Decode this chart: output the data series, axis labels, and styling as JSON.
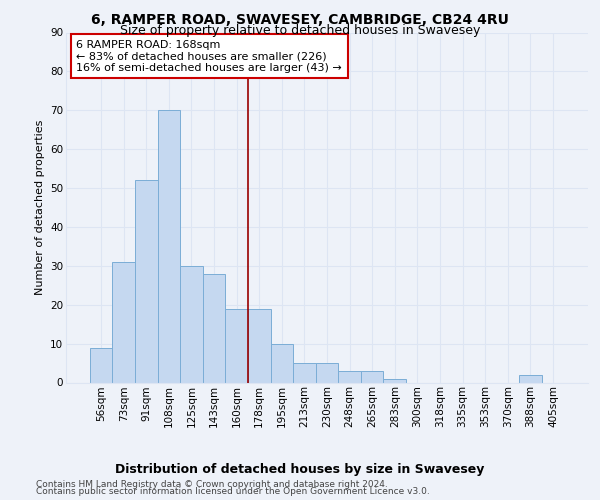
{
  "title1": "6, RAMPER ROAD, SWAVESEY, CAMBRIDGE, CB24 4RU",
  "title2": "Size of property relative to detached houses in Swavesey",
  "xlabel": "Distribution of detached houses by size in Swavesey",
  "ylabel": "Number of detached properties",
  "categories": [
    "56sqm",
    "73sqm",
    "91sqm",
    "108sqm",
    "125sqm",
    "143sqm",
    "160sqm",
    "178sqm",
    "195sqm",
    "213sqm",
    "230sqm",
    "248sqm",
    "265sqm",
    "283sqm",
    "300sqm",
    "318sqm",
    "335sqm",
    "353sqm",
    "370sqm",
    "388sqm",
    "405sqm"
  ],
  "values": [
    9,
    31,
    52,
    70,
    30,
    28,
    19,
    19,
    10,
    5,
    5,
    3,
    3,
    1,
    0,
    0,
    0,
    0,
    0,
    2,
    0
  ],
  "bar_color": "#c5d8f0",
  "bar_edge_color": "#7badd6",
  "vline_color": "#990000",
  "annotation_line1": "6 RAMPER ROAD: 168sqm",
  "annotation_line2": "← 83% of detached houses are smaller (226)",
  "annotation_line3": "16% of semi-detached houses are larger (43) →",
  "annotation_box_color": "#ffffff",
  "annotation_box_edge_color": "#cc0000",
  "ylim": [
    0,
    90
  ],
  "yticks": [
    0,
    10,
    20,
    30,
    40,
    50,
    60,
    70,
    80,
    90
  ],
  "footer1": "Contains HM Land Registry data © Crown copyright and database right 2024.",
  "footer2": "Contains public sector information licensed under the Open Government Licence v3.0.",
  "bg_color": "#eef2f9",
  "grid_color": "#dde5f3",
  "title_fontsize": 10,
  "subtitle_fontsize": 9,
  "xlabel_fontsize": 9,
  "ylabel_fontsize": 8,
  "tick_fontsize": 7.5,
  "annotation_fontsize": 8,
  "footer_fontsize": 6.5,
  "vline_x": 6.5
}
